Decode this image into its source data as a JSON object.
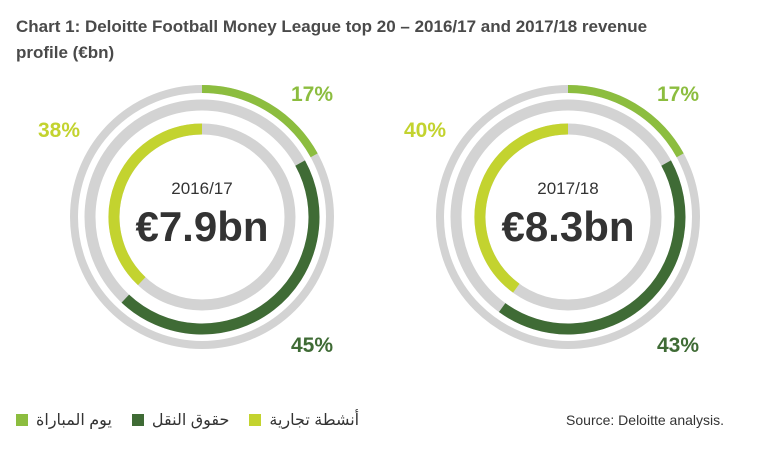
{
  "title": "Chart 1: Deloitte Football Money League top 20 – 2016/17 and 2017/18 revenue profile (€bn)",
  "colors": {
    "matchday": "#8cbd3f",
    "broadcast": "#3f6b35",
    "commercial": "#c3d32f",
    "track": "#d3d3d3",
    "text": "#333333"
  },
  "legend": [
    {
      "label": "يوم المباراة",
      "color": "#8cbd3f"
    },
    {
      "label": "حقوق النقل",
      "color": "#3f6b35"
    },
    {
      "label": "أنشطة تجارية",
      "color": "#c3d32f"
    }
  ],
  "source": "Source: Deloitte analysis.",
  "chart_data": [
    {
      "type": "pie",
      "season": "2016/17",
      "total_label": "€7.9bn",
      "total": 7.9,
      "unit": "€bn",
      "slices": [
        {
          "name": "يوم المباراة",
          "value": 17,
          "label": "17%"
        },
        {
          "name": "حقوق النقل",
          "value": 45,
          "label": "45%"
        },
        {
          "name": "أنشطة تجارية",
          "value": 38,
          "label": "38%"
        }
      ]
    },
    {
      "type": "pie",
      "season": "2017/18",
      "total_label": "€8.3bn",
      "total": 8.3,
      "unit": "€bn",
      "slices": [
        {
          "name": "يوم المباراة",
          "value": 17,
          "label": "17%"
        },
        {
          "name": "حقوق النقل",
          "value": 43,
          "label": "43%"
        },
        {
          "name": "أنشطة تجارية",
          "value": 40,
          "label": "40%"
        }
      ]
    }
  ]
}
